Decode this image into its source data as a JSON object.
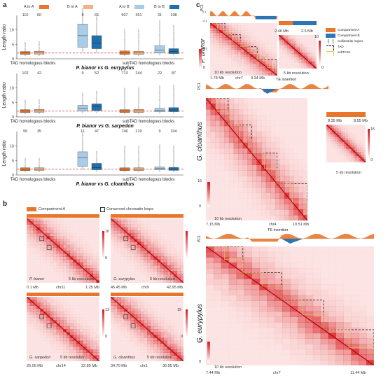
{
  "panel_a": {
    "letter": "a",
    "legend": [
      "A to A",
      "B to A",
      "A to B",
      "B to B"
    ],
    "ylabel": "Length ratio",
    "yticks": [
      "0",
      "5",
      "10"
    ],
    "xgroups": [
      "TAD homologous blocks",
      "subTAD homologous blocks"
    ],
    "rows": [
      {
        "title": "P. bianor vs G. eurypylus",
        "counts": [
          "110",
          "60",
          "9",
          "65",
          "907",
          "351",
          "31",
          "108"
        ]
      },
      {
        "title": "P. bianor vs G. sarpedon",
        "counts": [
          "102",
          "42",
          "9",
          "52",
          "713",
          "244",
          "22",
          "87"
        ]
      },
      {
        "title": "P. bianor vs G. cloanthus",
        "counts": [
          "99",
          "35",
          "11",
          "47",
          "746",
          "219",
          "9",
          "104"
        ]
      }
    ]
  },
  "panel_b": {
    "letter": "b",
    "legend_a": "Compartment A",
    "legend_loops": "Conserved chromatin loops",
    "resolution": "5 kb resolution",
    "maps": [
      {
        "species": "P. bianor",
        "start": "0.1 Mb",
        "chr": "chr11",
        "end": "1.25 Mb",
        "vmax": "10",
        "vmin": "0"
      },
      {
        "species": "G. eurypylus",
        "start": "45.45 Mb",
        "chr": "chr9",
        "end": "42.95 Mb",
        "vmax": "10",
        "vmin": "0"
      },
      {
        "species": "G. sarpedon",
        "start": "25.05 Mb",
        "chr": "chr14",
        "end": "22.85 Mb",
        "vmax": "13",
        "vmin": "0"
      },
      {
        "species": "G. cloanthus",
        "start": "34.70 Mb",
        "chr": "chr1",
        "end": "36.95 Mb",
        "vmax": "15",
        "vmin": "0"
      }
    ]
  },
  "panel_c": {
    "letter": "c",
    "pc1": "PC1",
    "pc1_ticks": [
      "0.1",
      "0",
      "-0.1"
    ],
    "legend": [
      "Compartment A",
      "Compartment B",
      "Collinearity region",
      "TAD",
      "subTADs"
    ],
    "te_insertion": "TE insertion",
    "kb10": "10 kb resolution",
    "kb5": "5 kb resolution",
    "maps": [
      {
        "species": "P. bianor",
        "start": "1.78 Mb",
        "chr": "chr7",
        "end": "3.34 Mb",
        "vmax": "27",
        "vmin": "0",
        "zoom": {
          "start": "2.46 Mb",
          "end": "2.6 Mb",
          "vmax": "10",
          "vmin": "0"
        }
      },
      {
        "species": "G. cloanthus",
        "start": "7.15 Mb",
        "chr": "chr4",
        "end": "10.51 Mb",
        "vmax": "16",
        "vmin": "0",
        "zoom": {
          "start": "8.35 Mb",
          "end": "8.55 Mb",
          "vmax": "15",
          "vmin": "0"
        }
      },
      {
        "species": "G. eurypylus",
        "start": "7.44 Mb",
        "chr": "chr7",
        "end": "11.44 Mb",
        "vmax": "19",
        "vmin": "0"
      }
    ]
  },
  "colors": {
    "AtoA": "#e8772e",
    "BtoA": "#f4b183",
    "AtoB": "#a9cde8",
    "BtoB": "#1f6fae",
    "compA": "#e8772e",
    "compB": "#2f75b5",
    "heat": "#d7191c"
  }
}
